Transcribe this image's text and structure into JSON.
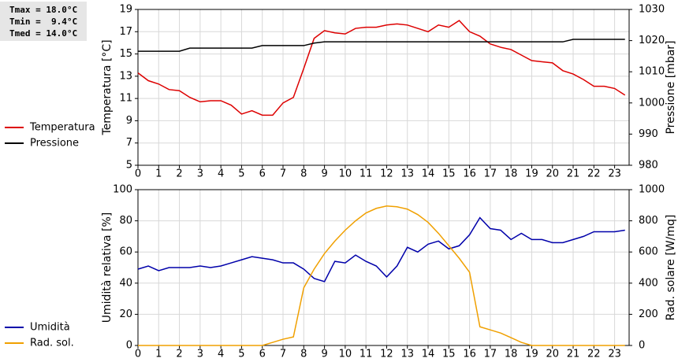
{
  "chart_data": [
    {
      "type": "line",
      "annotations": [
        "Tmax = 18.0°C",
        "Tmin =  9.4°C",
        "Tmed = 14.0°C"
      ],
      "ylabel": "Temperatura [°C]",
      "y2label": "Pressione [mbar]",
      "x": [
        0,
        0.5,
        1,
        1.5,
        2,
        2.5,
        3,
        3.5,
        4,
        4.5,
        5,
        5.5,
        6,
        6.5,
        7,
        7.5,
        8,
        8.5,
        9,
        9.5,
        10,
        10.5,
        11,
        11.5,
        12,
        12.5,
        13,
        13.5,
        14,
        14.5,
        15,
        15.5,
        16,
        16.5,
        17,
        17.5,
        18,
        18.5,
        19,
        19.5,
        20,
        20.5,
        21,
        21.5,
        22,
        22.5,
        23,
        23.5
      ],
      "xlim": [
        0,
        23.7
      ],
      "xticks": [
        0,
        1,
        2,
        3,
        4,
        5,
        6,
        7,
        8,
        9,
        10,
        11,
        12,
        13,
        14,
        15,
        16,
        17,
        18,
        19,
        20,
        21,
        22,
        23
      ],
      "ylim": [
        5,
        19
      ],
      "yticks": [
        5,
        7,
        9,
        11,
        13,
        15,
        17,
        19
      ],
      "y2lim": [
        980,
        1030
      ],
      "y2ticks": [
        980,
        990,
        1000,
        1010,
        1020,
        1030
      ],
      "grid": true,
      "series": [
        {
          "name": "Temperatura",
          "color": "#dd0000",
          "axis": "y",
          "values": [
            13.3,
            12.6,
            12.3,
            11.8,
            11.7,
            11.1,
            10.7,
            10.8,
            10.8,
            10.4,
            9.6,
            9.9,
            9.5,
            9.5,
            10.6,
            11.1,
            13.7,
            16.4,
            17.1,
            16.9,
            16.8,
            17.3,
            17.4,
            17.4,
            17.6,
            17.7,
            17.6,
            17.3,
            17.0,
            17.6,
            17.4,
            18.0,
            17.0,
            16.6,
            15.9,
            15.6,
            15.4,
            14.9,
            14.4,
            14.3,
            14.2,
            13.5,
            13.2,
            12.7,
            12.1,
            12.1,
            11.9,
            11.3
          ]
        },
        {
          "name": "Pressione",
          "color": "#000000",
          "axis": "y2",
          "values": [
            1016.6,
            1016.6,
            1016.6,
            1016.6,
            1016.6,
            1017.6,
            1017.6,
            1017.6,
            1017.6,
            1017.6,
            1017.6,
            1017.6,
            1018.4,
            1018.4,
            1018.4,
            1018.4,
            1018.4,
            1019.2,
            1019.6,
            1019.6,
            1019.6,
            1019.6,
            1019.6,
            1019.6,
            1019.6,
            1019.6,
            1019.6,
            1019.6,
            1019.6,
            1019.6,
            1019.6,
            1019.6,
            1019.6,
            1019.6,
            1019.6,
            1019.6,
            1019.6,
            1019.6,
            1019.6,
            1019.6,
            1019.6,
            1019.6,
            1020.4,
            1020.4,
            1020.4,
            1020.4,
            1020.4,
            1020.4
          ]
        }
      ]
    },
    {
      "type": "line",
      "ylabel": "Umidità relativa [%]",
      "y2label": "Rad. solare [W/mq]",
      "x": [
        0,
        0.5,
        1,
        1.5,
        2,
        2.5,
        3,
        3.5,
        4,
        4.5,
        5,
        5.5,
        6,
        6.5,
        7,
        7.5,
        8,
        8.5,
        9,
        9.5,
        10,
        10.5,
        11,
        11.5,
        12,
        12.5,
        13,
        13.5,
        14,
        14.5,
        15,
        15.5,
        16,
        16.5,
        17,
        17.5,
        18,
        18.5,
        19,
        19.5,
        20,
        20.5,
        21,
        21.5,
        22,
        22.5,
        23,
        23.5
      ],
      "xlim": [
        0,
        23.7
      ],
      "xticks": [
        0,
        1,
        2,
        3,
        4,
        5,
        6,
        7,
        8,
        9,
        10,
        11,
        12,
        13,
        14,
        15,
        16,
        17,
        18,
        19,
        20,
        21,
        22,
        23
      ],
      "ylim": [
        0,
        100
      ],
      "yticks": [
        0,
        20,
        40,
        60,
        80,
        100
      ],
      "y2lim": [
        0,
        1000
      ],
      "y2ticks": [
        0,
        200,
        400,
        600,
        800,
        1000
      ],
      "grid": true,
      "series": [
        {
          "name": "Umidità",
          "color": "#0000aa",
          "axis": "y",
          "values": [
            49,
            51,
            48,
            50,
            50,
            50,
            51,
            50,
            51,
            53,
            55,
            57,
            56,
            55,
            53,
            53,
            49,
            43,
            41,
            54,
            53,
            58,
            54,
            51,
            44,
            51,
            63,
            60,
            65,
            67,
            62,
            64,
            71,
            82,
            75,
            74,
            68,
            72,
            68,
            68,
            66,
            66,
            68,
            70,
            73,
            73,
            73,
            74
          ]
        },
        {
          "name": "Rad. sol.",
          "color": "#f0a000",
          "axis": "y2",
          "values": [
            0,
            0,
            0,
            0,
            0,
            0,
            0,
            0,
            0,
            0,
            0,
            0,
            0,
            20,
            40,
            55,
            370,
            490,
            590,
            670,
            740,
            800,
            850,
            880,
            895,
            890,
            875,
            840,
            790,
            720,
            640,
            560,
            470,
            120,
            100,
            80,
            50,
            20,
            0,
            0,
            0,
            0,
            0,
            0,
            0,
            0,
            0,
            0
          ]
        }
      ]
    }
  ]
}
